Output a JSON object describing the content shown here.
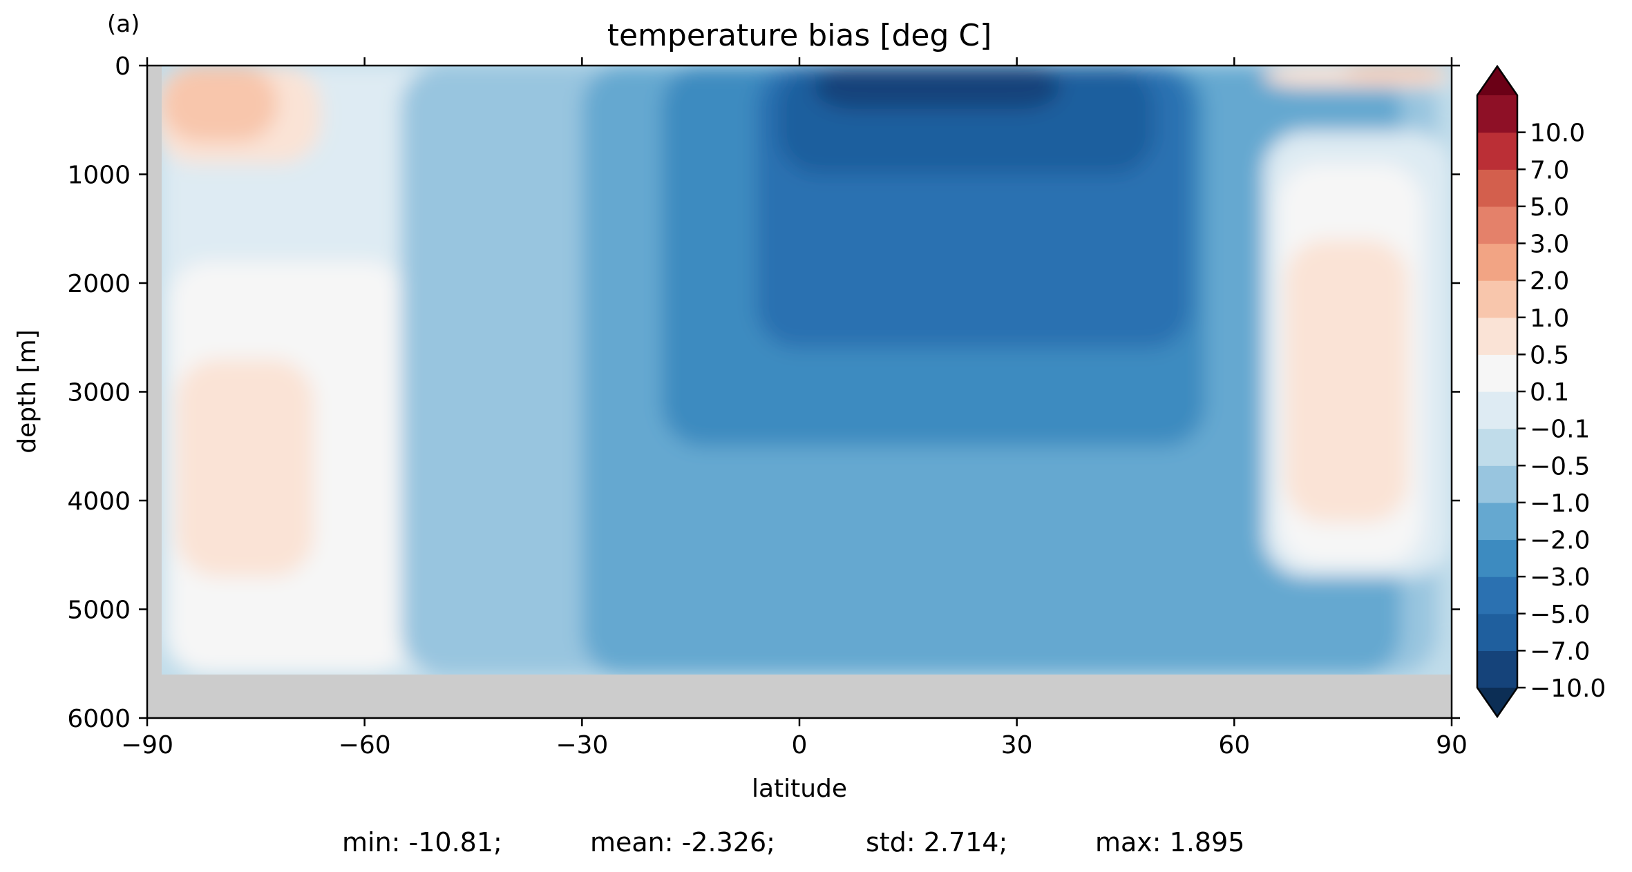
{
  "chart_data": {
    "type": "heatmap",
    "panel_label": "(a)",
    "title": "temperature bias [deg C]",
    "xlabel": "latitude",
    "ylabel": "depth [m]",
    "xlim": [
      -90,
      90
    ],
    "ylim": [
      6000,
      0
    ],
    "y_inverted": true,
    "x_ticks": [
      -90,
      -60,
      -30,
      0,
      30,
      60,
      90
    ],
    "x_tick_labels": [
      "−90",
      "−60",
      "−30",
      "0",
      "30",
      "60",
      "90"
    ],
    "y_ticks": [
      0,
      1000,
      2000,
      3000,
      4000,
      5000,
      6000
    ],
    "y_tick_labels": [
      "0",
      "1000",
      "2000",
      "3000",
      "4000",
      "5000",
      "6000"
    ],
    "grid": false,
    "land_mask": {
      "color": "#cccccc",
      "bottom_depth": 5600,
      "west_edge_lat": -88
    },
    "colorbar": {
      "placement": "right",
      "extend": "both",
      "levels": [
        -10.0,
        -7.0,
        -5.0,
        -3.0,
        -2.0,
        -1.0,
        -0.5,
        -0.1,
        0.1,
        0.5,
        1.0,
        2.0,
        3.0,
        5.0,
        7.0,
        10.0
      ],
      "tick_labels": [
        "−10.0",
        "−7.0",
        "−5.0",
        "−3.0",
        "−2.0",
        "−1.0",
        "−0.5",
        "−0.1",
        "0.1",
        "0.5",
        "1.0",
        "2.0",
        "3.0",
        "5.0",
        "7.0",
        "10.0"
      ],
      "colors": [
        "#15437a",
        "#1f5f9e",
        "#2b71b1",
        "#3d8bc0",
        "#65a8d0",
        "#98c5df",
        "#c0dcea",
        "#deebf3",
        "#f6f6f6",
        "#fae3d6",
        "#f8c6ac",
        "#f2a484",
        "#e4816a",
        "#d35f4d",
        "#bb2f36",
        "#8e1026"
      ],
      "under_color": "#0c2e55",
      "over_color": "#6b0016"
    },
    "fields": [
      {
        "bias": -0.5,
        "lat_range": [
          -70,
          90
        ],
        "depth_range": [
          0,
          5600
        ]
      },
      {
        "bias": -0.1,
        "lat_range": [
          -88,
          -34
        ],
        "depth_range": [
          0,
          5600
        ]
      },
      {
        "bias": 0.1,
        "lat_range": [
          -87,
          -54
        ],
        "depth_range": [
          1800,
          5600
        ]
      },
      {
        "bias": 0.5,
        "lat_range": [
          -86,
          -67
        ],
        "depth_range": [
          2700,
          4700
        ]
      },
      {
        "bias": -1.0,
        "lat_range": [
          -55,
          88
        ],
        "depth_range": [
          0,
          5600
        ]
      },
      {
        "bias": -2.0,
        "lat_range": [
          -30,
          83
        ],
        "depth_range": [
          0,
          5600
        ]
      },
      {
        "bias": -3.0,
        "lat_range": [
          -19,
          56
        ],
        "depth_range": [
          0,
          3500
        ]
      },
      {
        "bias": -5.0,
        "lat_range": [
          -6,
          54
        ],
        "depth_range": [
          0,
          2600
        ]
      },
      {
        "bias": -7.0,
        "lat_range": [
          -3,
          49
        ],
        "depth_range": [
          0,
          1000
        ]
      },
      {
        "bias": -10.0,
        "lat_range": [
          2,
          36
        ],
        "depth_range": [
          0,
          400
        ]
      },
      {
        "bias": -0.1,
        "lat_range": [
          64,
          90
        ],
        "depth_range": [
          600,
          4700
        ]
      },
      {
        "bias": 0.1,
        "lat_range": [
          66,
          86
        ],
        "depth_range": [
          900,
          4600
        ]
      },
      {
        "bias": 0.5,
        "lat_range": [
          67,
          84
        ],
        "depth_range": [
          1600,
          4200
        ]
      },
      {
        "bias": 0.5,
        "lat_range": [
          -89,
          -66
        ],
        "depth_range": [
          0,
          900
        ]
      },
      {
        "bias": 1.0,
        "lat_range": [
          -88,
          -72
        ],
        "depth_range": [
          0,
          700
        ]
      },
      {
        "bias": 0.5,
        "lat_range": [
          64,
          90
        ],
        "depth_range": [
          0,
          200
        ]
      },
      {
        "bias": 1.0,
        "lat_range": [
          75,
          89
        ],
        "depth_range": [
          0,
          120
        ]
      }
    ],
    "stats": {
      "min": "min: -10.81;",
      "mean": "mean: -2.326;",
      "std": "std: 2.714;",
      "max": "max: 1.895"
    }
  }
}
